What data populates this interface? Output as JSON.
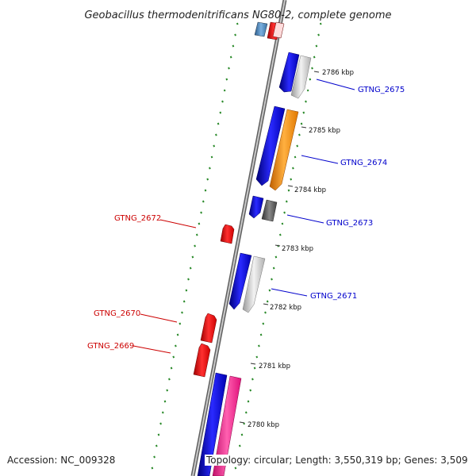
{
  "title": "Geobacillus thermodenitrificans NG80-2, complete genome",
  "footer": {
    "accession": "Accession: NC_009328",
    "summary": "Topology: circular; Length: 3,550,319 bp; Genes: 3,509"
  },
  "ruler": {
    "unit": "kbp",
    "ticks": [
      {
        "label": "2786 kbp",
        "value": 2786
      },
      {
        "label": "2785 kbp",
        "value": 2785
      },
      {
        "label": "2784 kbp",
        "value": 2784
      },
      {
        "label": "2783 kbp",
        "value": 2783
      },
      {
        "label": "2782 kbp",
        "value": 2782
      },
      {
        "label": "2781 kbp",
        "value": 2781
      },
      {
        "label": "2780 kbp",
        "value": 2780
      }
    ]
  },
  "genes": [
    {
      "name": "GTNG_2675",
      "strand": "forward",
      "color": "#0000cc"
    },
    {
      "name": "GTNG_2674",
      "strand": "forward",
      "color": "#0000cc"
    },
    {
      "name": "GTNG_2673",
      "strand": "forward",
      "color": "#0000cc"
    },
    {
      "name": "GTNG_2672",
      "strand": "reverse",
      "color": "#cc0000"
    },
    {
      "name": "GTNG_2671",
      "strand": "forward",
      "color": "#0000cc"
    },
    {
      "name": "GTNG_2670",
      "strand": "reverse",
      "color": "#cc0000"
    },
    {
      "name": "GTNG_2669",
      "strand": "reverse",
      "color": "#cc0000"
    }
  ],
  "colors": {
    "backbone": "#808080",
    "cds": "#0000ee",
    "rrna_or_misc": "#c8c8c8",
    "orange_feature": "#ff8c00",
    "dark_grey_feature": "#555555",
    "magenta_feature": "#ff1493",
    "reverse_cds": "#ee0000",
    "steel_blue_feature": "#4682b4",
    "gc_skew_dots": "#2a8a2a"
  }
}
